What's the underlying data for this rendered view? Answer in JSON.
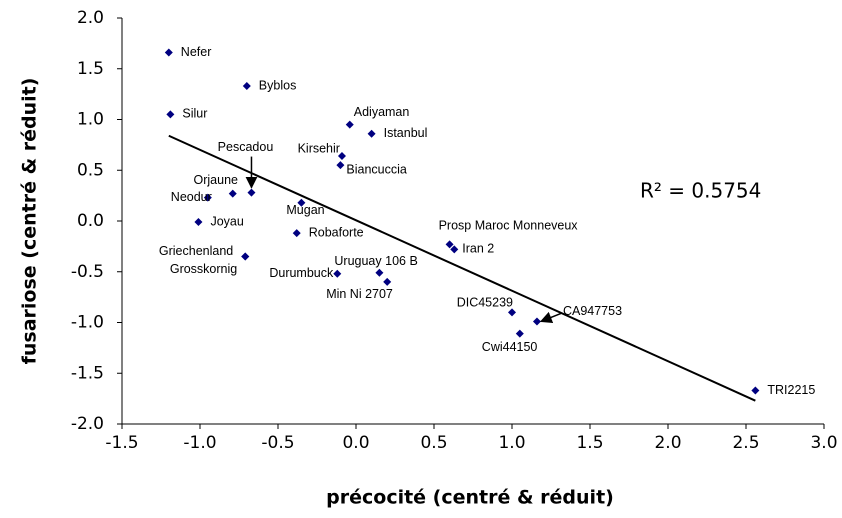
{
  "chart_data": {
    "type": "scatter",
    "xlabel": "précocité (centré & réduit)",
    "ylabel": "fusariose (centré & réduit)",
    "annotation": "R² = 0.5754",
    "color": "#000080",
    "labels": [
      "Nefer",
      "Byblos",
      "Silur",
      "Adiyaman",
      "Istanbul",
      "Kirsehir",
      "Biancuccia",
      "Pescadou",
      "Orjaune",
      "Neodur",
      "Mugan",
      "Joyau",
      "Robaforte",
      "Griechenland",
      "Grosskornig",
      "Durumbuck",
      "Uruguay 106 B",
      "Min Ni 2707",
      "Prosp Maroc Monneveux",
      "Iran 2",
      "DIC45239",
      "CA947753",
      "Cwi44150",
      "TRI2215"
    ],
    "x": [
      -1.2,
      -0.7,
      -1.19,
      -0.04,
      0.1,
      -0.09,
      -0.1,
      -0.67,
      -0.79,
      -0.95,
      -0.35,
      -1.01,
      -0.38,
      -0.71,
      -0.71,
      -0.12,
      0.15,
      0.2,
      0.6,
      0.63,
      1.0,
      1.16,
      1.05,
      2.56
    ],
    "y": [
      1.66,
      1.33,
      1.05,
      0.95,
      0.86,
      0.64,
      0.55,
      0.28,
      0.27,
      0.23,
      0.18,
      -0.01,
      -0.12,
      -0.35,
      -0.35,
      -0.52,
      -0.51,
      -0.6,
      -0.23,
      -0.28,
      -0.9,
      -0.99,
      -1.11,
      -1.67
    ],
    "trendline": {
      "x": [
        -1.2,
        2.56
      ],
      "y": [
        0.84,
        -1.77
      ]
    },
    "xlim": [
      -1.5,
      3
    ],
    "xticks": [
      -1.5,
      {
        "value": -1,
        "label": "-1.0"
      },
      -0.5,
      {
        "value": 0,
        "label": "0.0"
      },
      0.5,
      {
        "value": 1,
        "label": "1.0"
      },
      1.5,
      {
        "value": 2,
        "label": "2.0"
      },
      2.5,
      {
        "value": 3,
        "label": "3.0"
      }
    ],
    "ylim": [
      -2,
      2
    ],
    "yticks": [
      {
        "value": -2,
        "label": "-2.0"
      },
      -1.5,
      {
        "value": -1,
        "label": "-1.0"
      },
      -0.5,
      {
        "value": 0,
        "label": "0.0"
      },
      0.5,
      {
        "value": 1,
        "label": "1.0"
      },
      1.5,
      {
        "value": 2,
        "label": "2.0"
      }
    ],
    "grid": false
  }
}
